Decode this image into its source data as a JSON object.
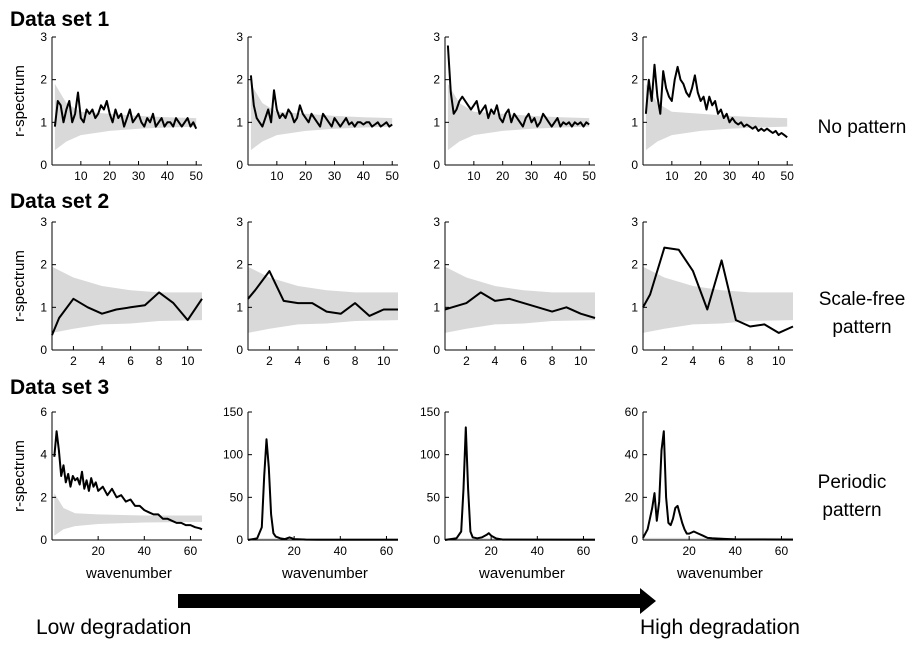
{
  "figure": {
    "row_titles": [
      "Data set 1",
      "Data set 2",
      "Data set 3"
    ],
    "row_labels": [
      [
        "No pattern"
      ],
      [
        "Scale-free",
        "pattern"
      ],
      [
        "Periodic",
        "pattern"
      ]
    ],
    "ylabel": "r-spectrum",
    "xlabel": "wavenumber",
    "arrow_left_label": "Low degradation",
    "arrow_right_label": "High degradation"
  },
  "colors": {
    "line": "#000000",
    "band": "#d9d9d9",
    "axis": "#000000"
  },
  "chart_data": [
    {
      "type": "line",
      "row": 0,
      "col": 0,
      "xlim": [
        0,
        52
      ],
      "ylim": [
        0,
        3
      ],
      "xticks": [
        10,
        20,
        30,
        40,
        50
      ],
      "yticks": [
        0,
        1,
        2,
        3
      ],
      "series": [
        {
          "values": [
            0.9,
            1.5,
            1.4,
            1.0,
            1.3,
            1.5,
            1.0,
            1.2,
            1.7,
            1.1,
            1.0,
            1.3,
            1.2,
            1.3,
            1.1,
            1.2,
            1.4,
            1.3,
            1.5,
            1.2,
            1.0,
            1.3,
            1.1,
            1.2,
            0.9,
            1.1,
            1.3,
            1.0,
            1.1,
            1.2,
            1.0,
            0.9,
            1.1,
            1.0,
            1.2,
            0.9,
            1.0,
            1.1,
            0.9,
            1.0,
            1.0,
            0.9,
            1.1,
            1.0,
            0.9,
            1.0,
            1.1,
            0.9,
            1.0,
            0.85
          ]
        }
      ],
      "band": {
        "x": [
          1,
          5,
          10,
          20,
          30,
          40,
          50
        ],
        "lower": [
          0.35,
          0.55,
          0.7,
          0.8,
          0.85,
          0.88,
          0.9
        ],
        "upper": [
          1.9,
          1.45,
          1.25,
          1.2,
          1.15,
          1.12,
          1.1
        ]
      }
    },
    {
      "type": "line",
      "row": 0,
      "col": 1,
      "xlim": [
        0,
        52
      ],
      "ylim": [
        0,
        3
      ],
      "xticks": [
        10,
        20,
        30,
        40,
        50
      ],
      "yticks": [
        0,
        1,
        2,
        3
      ],
      "series": [
        {
          "values": [
            2.1,
            1.4,
            1.1,
            1.0,
            0.9,
            1.1,
            1.3,
            1.0,
            1.75,
            1.3,
            1.1,
            1.2,
            1.1,
            1.3,
            1.2,
            1.0,
            1.1,
            1.4,
            1.2,
            1.1,
            1.0,
            1.2,
            1.1,
            1.0,
            0.9,
            1.2,
            1.1,
            1.0,
            0.9,
            1.1,
            1.0,
            0.9,
            1.0,
            1.1,
            0.95,
            1.0,
            0.9,
            1.0,
            1.0,
            0.95,
            1.0,
            1.0,
            0.9,
            0.95,
            1.0,
            0.9,
            0.95,
            1.0,
            0.9,
            0.95
          ]
        }
      ],
      "band": {
        "x": [
          1,
          5,
          10,
          20,
          30,
          40,
          50
        ],
        "lower": [
          0.35,
          0.55,
          0.7,
          0.8,
          0.85,
          0.88,
          0.9
        ],
        "upper": [
          1.9,
          1.45,
          1.25,
          1.2,
          1.15,
          1.12,
          1.1
        ]
      }
    },
    {
      "type": "line",
      "row": 0,
      "col": 2,
      "xlim": [
        0,
        52
      ],
      "ylim": [
        0,
        3
      ],
      "xticks": [
        10,
        20,
        30,
        40,
        50
      ],
      "yticks": [
        0,
        1,
        2,
        3
      ],
      "series": [
        {
          "values": [
            2.8,
            1.7,
            1.2,
            1.3,
            1.5,
            1.6,
            1.5,
            1.4,
            1.3,
            1.4,
            1.5,
            1.2,
            1.3,
            1.4,
            1.1,
            1.3,
            1.2,
            1.4,
            1.1,
            1.0,
            1.2,
            1.3,
            1.0,
            1.2,
            1.1,
            1.0,
            0.9,
            1.1,
            1.2,
            1.0,
            1.1,
            0.9,
            1.0,
            1.2,
            1.1,
            1.0,
            0.9,
            1.0,
            1.1,
            0.9,
            1.0,
            0.95,
            1.0,
            0.9,
            1.0,
            0.95,
            1.0,
            0.9,
            1.0,
            0.95
          ]
        }
      ],
      "band": {
        "x": [
          1,
          5,
          10,
          20,
          30,
          40,
          50
        ],
        "lower": [
          0.35,
          0.55,
          0.7,
          0.8,
          0.85,
          0.88,
          0.9
        ],
        "upper": [
          1.9,
          1.45,
          1.25,
          1.2,
          1.15,
          1.12,
          1.1
        ]
      }
    },
    {
      "type": "line",
      "row": 0,
      "col": 3,
      "xlim": [
        0,
        52
      ],
      "ylim": [
        0,
        3
      ],
      "xticks": [
        10,
        20,
        30,
        40,
        50
      ],
      "yticks": [
        0,
        1,
        2,
        3
      ],
      "series": [
        {
          "values": [
            1.2,
            2.0,
            1.5,
            2.35,
            1.6,
            1.2,
            2.2,
            1.8,
            1.6,
            1.5,
            2.0,
            2.3,
            2.0,
            1.9,
            1.7,
            1.6,
            1.8,
            2.1,
            1.7,
            1.5,
            1.6,
            1.3,
            1.6,
            1.4,
            1.5,
            1.2,
            1.3,
            1.1,
            1.2,
            1.0,
            1.1,
            1.0,
            0.95,
            1.0,
            0.9,
            0.95,
            0.9,
            0.85,
            0.9,
            0.8,
            0.85,
            0.8,
            0.85,
            0.8,
            0.75,
            0.8,
            0.7,
            0.75,
            0.7,
            0.65
          ]
        }
      ],
      "band": {
        "x": [
          1,
          5,
          10,
          20,
          30,
          40,
          50
        ],
        "lower": [
          0.35,
          0.55,
          0.7,
          0.8,
          0.85,
          0.88,
          0.9
        ],
        "upper": [
          1.9,
          1.45,
          1.25,
          1.2,
          1.15,
          1.12,
          1.1
        ]
      }
    },
    {
      "type": "line",
      "row": 1,
      "col": 0,
      "xlim": [
        0.5,
        11
      ],
      "ylim": [
        0,
        3
      ],
      "xticks": [
        2,
        4,
        6,
        8,
        10
      ],
      "yticks": [
        0,
        1,
        2,
        3
      ],
      "series": [
        {
          "x": [
            0.5,
            1,
            2,
            3,
            4,
            5,
            6,
            7,
            8,
            9,
            10,
            11
          ],
          "values": [
            0.35,
            0.75,
            1.2,
            1.0,
            0.85,
            0.95,
            1.0,
            1.05,
            1.35,
            1.1,
            0.7,
            1.2
          ]
        }
      ],
      "band": {
        "x": [
          0.5,
          2,
          4,
          6,
          8,
          11
        ],
        "lower": [
          0.4,
          0.5,
          0.6,
          0.62,
          0.68,
          0.7
        ],
        "upper": [
          1.95,
          1.7,
          1.5,
          1.4,
          1.35,
          1.35
        ]
      }
    },
    {
      "type": "line",
      "row": 1,
      "col": 1,
      "xlim": [
        0.5,
        11
      ],
      "ylim": [
        0,
        3
      ],
      "xticks": [
        2,
        4,
        6,
        8,
        10
      ],
      "yticks": [
        0,
        1,
        2,
        3
      ],
      "series": [
        {
          "x": [
            0.5,
            1,
            2,
            3,
            4,
            5,
            6,
            7,
            8,
            9,
            10,
            11
          ],
          "values": [
            1.2,
            1.4,
            1.85,
            1.15,
            1.1,
            1.1,
            0.9,
            0.85,
            1.1,
            0.8,
            0.95,
            0.95
          ]
        }
      ],
      "band": {
        "x": [
          0.5,
          2,
          4,
          6,
          8,
          11
        ],
        "lower": [
          0.4,
          0.5,
          0.6,
          0.62,
          0.68,
          0.7
        ],
        "upper": [
          1.95,
          1.7,
          1.5,
          1.4,
          1.35,
          1.35
        ]
      }
    },
    {
      "type": "line",
      "row": 1,
      "col": 2,
      "xlim": [
        0.5,
        11
      ],
      "ylim": [
        0,
        3
      ],
      "xticks": [
        2,
        4,
        6,
        8,
        10
      ],
      "yticks": [
        0,
        1,
        2,
        3
      ],
      "series": [
        {
          "x": [
            0.5,
            1,
            2,
            3,
            4,
            5,
            6,
            7,
            8,
            9,
            10,
            11
          ],
          "values": [
            0.95,
            1.0,
            1.1,
            1.35,
            1.15,
            1.2,
            1.1,
            1.0,
            0.9,
            1.0,
            0.85,
            0.75
          ]
        }
      ],
      "band": {
        "x": [
          0.5,
          2,
          4,
          6,
          8,
          11
        ],
        "lower": [
          0.4,
          0.5,
          0.6,
          0.62,
          0.68,
          0.7
        ],
        "upper": [
          1.95,
          1.7,
          1.5,
          1.4,
          1.35,
          1.35
        ]
      }
    },
    {
      "type": "line",
      "row": 1,
      "col": 3,
      "xlim": [
        0.5,
        11
      ],
      "ylim": [
        0,
        3
      ],
      "xticks": [
        2,
        4,
        6,
        8,
        10
      ],
      "yticks": [
        0,
        1,
        2,
        3
      ],
      "series": [
        {
          "x": [
            0.5,
            1,
            2,
            3,
            4,
            5,
            6,
            7,
            8,
            9,
            10,
            11
          ],
          "values": [
            1.0,
            1.3,
            2.4,
            2.35,
            1.85,
            0.95,
            2.1,
            0.7,
            0.55,
            0.6,
            0.4,
            0.55
          ]
        }
      ],
      "band": {
        "x": [
          0.5,
          2,
          4,
          6,
          8,
          11
        ],
        "lower": [
          0.4,
          0.5,
          0.6,
          0.62,
          0.68,
          0.7
        ],
        "upper": [
          1.95,
          1.7,
          1.5,
          1.4,
          1.35,
          1.35
        ]
      }
    },
    {
      "type": "line",
      "row": 2,
      "col": 0,
      "xlim": [
        0,
        65
      ],
      "ylim": [
        0,
        6
      ],
      "xticks": [
        20,
        40,
        60
      ],
      "yticks": [
        0,
        2,
        4,
        6
      ],
      "series": [
        {
          "x": [
            1,
            2,
            3,
            4,
            5,
            6,
            7,
            8,
            9,
            10,
            11,
            12,
            13,
            14,
            15,
            16,
            17,
            18,
            19,
            20,
            22,
            24,
            26,
            28,
            30,
            32,
            34,
            36,
            38,
            40,
            42,
            44,
            46,
            48,
            50,
            52,
            54,
            56,
            58,
            60,
            62,
            64,
            65
          ],
          "values": [
            3.9,
            5.1,
            4.2,
            3.0,
            3.5,
            2.7,
            3.1,
            2.5,
            3.0,
            2.8,
            2.9,
            2.6,
            3.2,
            2.4,
            2.8,
            2.3,
            2.9,
            2.5,
            2.7,
            2.3,
            2.5,
            2.1,
            2.4,
            2.0,
            2.1,
            1.8,
            1.9,
            1.6,
            1.6,
            1.4,
            1.3,
            1.2,
            1.2,
            1.0,
            1.0,
            0.9,
            0.8,
            0.8,
            0.7,
            0.7,
            0.6,
            0.55,
            0.5
          ]
        }
      ],
      "band": {
        "x": [
          1,
          5,
          10,
          20,
          40,
          65
        ],
        "lower": [
          0.2,
          0.5,
          0.65,
          0.75,
          0.82,
          0.85
        ],
        "upper": [
          2.2,
          1.5,
          1.25,
          1.2,
          1.15,
          1.15
        ]
      }
    },
    {
      "type": "line",
      "row": 2,
      "col": 1,
      "xlim": [
        0,
        65
      ],
      "ylim": [
        0,
        150
      ],
      "xticks": [
        20,
        40,
        60
      ],
      "yticks": [
        0,
        50,
        100,
        150
      ],
      "series": [
        {
          "x": [
            0,
            4,
            6,
            7,
            8,
            9,
            10,
            11,
            12,
            14,
            16,
            18,
            20,
            25,
            30,
            65
          ],
          "values": [
            0,
            2,
            15,
            75,
            118,
            85,
            30,
            8,
            4,
            2,
            1,
            3,
            1,
            0.5,
            0.3,
            0.2
          ]
        }
      ],
      "band": {
        "x": [
          0,
          65
        ],
        "lower": [
          0,
          0
        ],
        "upper": [
          2,
          2
        ]
      }
    },
    {
      "type": "line",
      "row": 2,
      "col": 2,
      "xlim": [
        0,
        65
      ],
      "ylim": [
        0,
        150
      ],
      "xticks": [
        20,
        40,
        60
      ],
      "yticks": [
        0,
        50,
        100,
        150
      ],
      "series": [
        {
          "x": [
            0,
            5,
            7,
            8,
            9,
            10,
            11,
            12,
            14,
            16,
            18,
            19,
            20,
            22,
            25,
            65
          ],
          "values": [
            0,
            2,
            10,
            60,
            132,
            60,
            10,
            3,
            2,
            3,
            6,
            8,
            5,
            2,
            0.5,
            0.3
          ]
        }
      ],
      "band": {
        "x": [
          0,
          65
        ],
        "lower": [
          0,
          0
        ],
        "upper": [
          2,
          2
        ]
      }
    },
    {
      "type": "line",
      "row": 2,
      "col": 3,
      "xlim": [
        0,
        65
      ],
      "ylim": [
        0,
        60
      ],
      "xticks": [
        20,
        40,
        60
      ],
      "yticks": [
        0,
        20,
        40,
        60
      ],
      "series": [
        {
          "x": [
            0,
            2,
            4,
            5,
            6,
            7,
            8,
            9,
            10,
            11,
            12,
            13,
            14,
            15,
            16,
            17,
            18,
            19,
            20,
            22,
            24,
            26,
            28,
            30,
            35,
            40,
            65
          ],
          "values": [
            1,
            5,
            15,
            22,
            9,
            18,
            42,
            51,
            20,
            8,
            7,
            10,
            15,
            16,
            12,
            8,
            5,
            3,
            3,
            4,
            3,
            2,
            1,
            0.8,
            0.5,
            0.3,
            0.2
          ]
        }
      ],
      "band": {
        "x": [
          0,
          65
        ],
        "lower": [
          0,
          0
        ],
        "upper": [
          1,
          1
        ]
      }
    }
  ]
}
